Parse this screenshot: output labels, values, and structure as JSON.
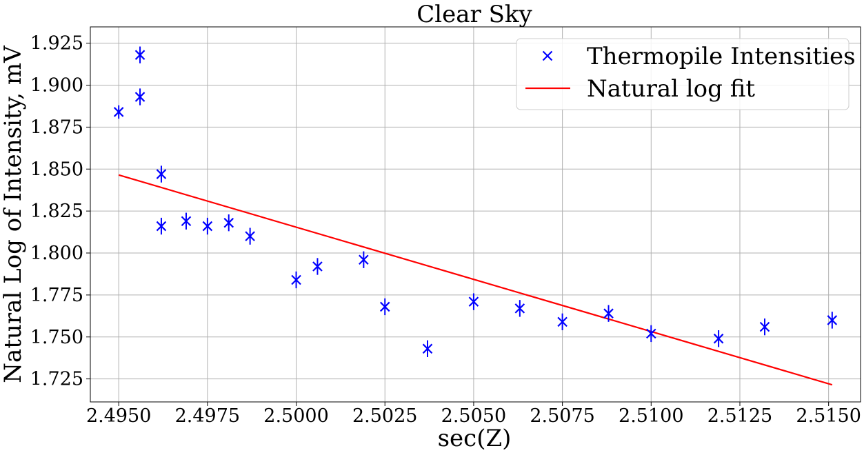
{
  "chart_data": {
    "type": "scatter",
    "title": "Clear Sky",
    "xlabel": "sec(Z)",
    "ylabel": "Natural Log of Intensity, mV",
    "xlim": [
      2.4942,
      2.5159
    ],
    "ylim": [
      1.7113,
      1.9347
    ],
    "grid": true,
    "legend_position": "top-right",
    "x_ticks": [
      2.495,
      2.4975,
      2.5,
      2.5025,
      2.505,
      2.5075,
      2.51,
      2.5125,
      2.515
    ],
    "x_tick_labels": [
      "2.4950",
      "2.4975",
      "2.5000",
      "2.5025",
      "2.5050",
      "2.5075",
      "2.5100",
      "2.5125",
      "2.5150"
    ],
    "y_ticks": [
      1.725,
      1.75,
      1.775,
      1.8,
      1.825,
      1.85,
      1.875,
      1.9,
      1.925
    ],
    "y_tick_labels": [
      "1.725",
      "1.750",
      "1.775",
      "1.800",
      "1.825",
      "1.850",
      "1.875",
      "1.900",
      "1.925"
    ],
    "series": [
      {
        "name": "Thermopile Intensities",
        "kind": "scatter",
        "marker": "x",
        "color": "#0000ff",
        "points": [
          {
            "x": 2.495,
            "y": 1.884,
            "err": 0.004
          },
          {
            "x": 2.4956,
            "y": 1.918,
            "err": 0.005
          },
          {
            "x": 2.4956,
            "y": 1.893,
            "err": 0.005
          },
          {
            "x": 2.4962,
            "y": 1.847,
            "err": 0.005
          },
          {
            "x": 2.4962,
            "y": 1.816,
            "err": 0.005
          },
          {
            "x": 2.4969,
            "y": 1.819,
            "err": 0.005
          },
          {
            "x": 2.4975,
            "y": 1.816,
            "err": 0.005
          },
          {
            "x": 2.4981,
            "y": 1.818,
            "err": 0.005
          },
          {
            "x": 2.4987,
            "y": 1.81,
            "err": 0.005
          },
          {
            "x": 2.5,
            "y": 1.784,
            "err": 0.005
          },
          {
            "x": 2.5006,
            "y": 1.792,
            "err": 0.005
          },
          {
            "x": 2.5019,
            "y": 1.796,
            "err": 0.005
          },
          {
            "x": 2.5025,
            "y": 1.768,
            "err": 0.005
          },
          {
            "x": 2.5037,
            "y": 1.743,
            "err": 0.005
          },
          {
            "x": 2.505,
            "y": 1.771,
            "err": 0.005
          },
          {
            "x": 2.5063,
            "y": 1.767,
            "err": 0.005
          },
          {
            "x": 2.5075,
            "y": 1.759,
            "err": 0.005
          },
          {
            "x": 2.5088,
            "y": 1.764,
            "err": 0.005
          },
          {
            "x": 2.51,
            "y": 1.752,
            "err": 0.005
          },
          {
            "x": 2.5119,
            "y": 1.749,
            "err": 0.005
          },
          {
            "x": 2.5132,
            "y": 1.756,
            "err": 0.005
          },
          {
            "x": 2.5151,
            "y": 1.76,
            "err": 0.005
          }
        ]
      },
      {
        "name": "Natural log fit",
        "kind": "line",
        "color": "#ff0000",
        "x": [
          2.495,
          2.5151
        ],
        "y": [
          1.8465,
          1.7215
        ]
      }
    ]
  }
}
